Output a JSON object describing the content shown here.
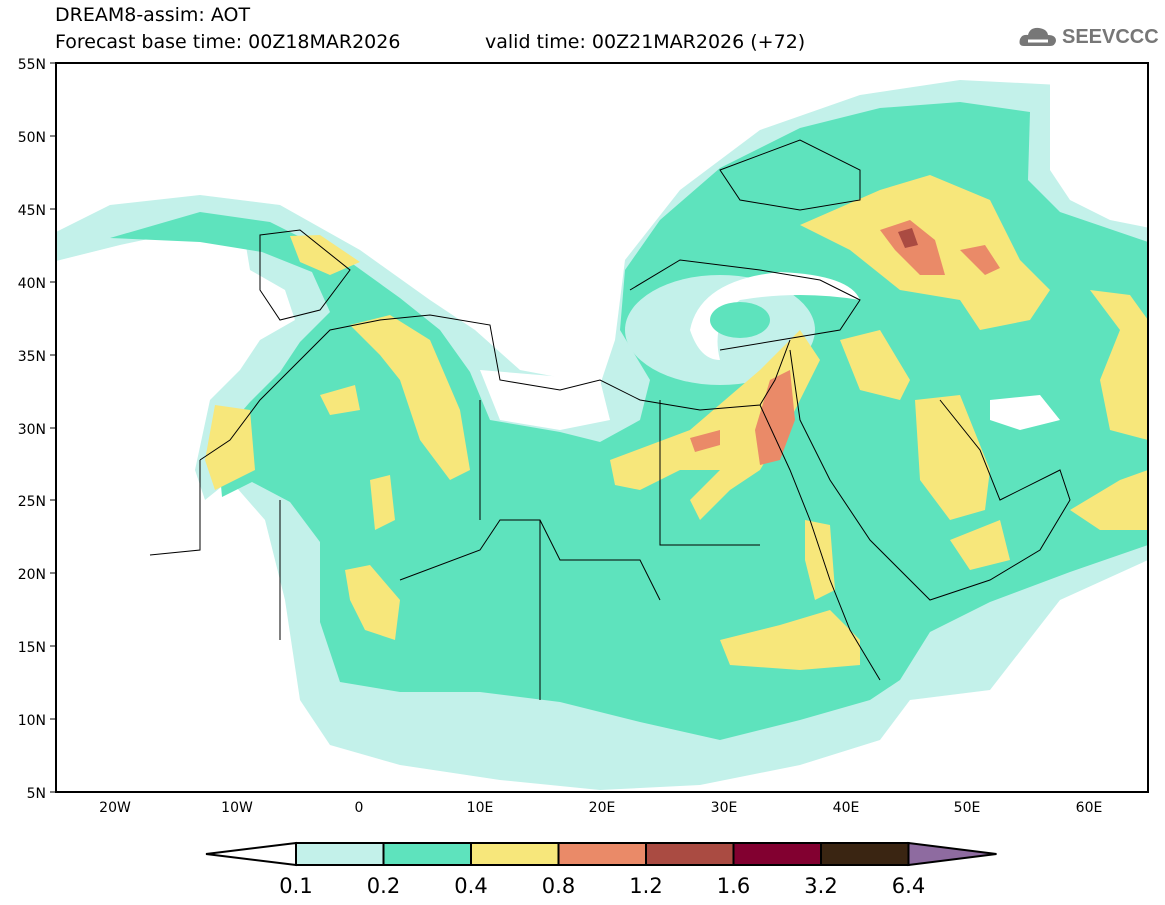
{
  "header": {
    "title": "DREAM8-assim: AOT",
    "base_time": "Forecast base time: 00Z18MAR2026",
    "valid_time": "valid time: 00Z21MAR2026 (+72)",
    "logo_text": "SEEVCCC"
  },
  "map": {
    "lat_labels": [
      "55N",
      "50N",
      "45N",
      "40N",
      "35N",
      "30N",
      "25N",
      "20N",
      "15N",
      "10N",
      "5N"
    ],
    "lon_labels": [
      "20W",
      "10W",
      "0",
      "10E",
      "20E",
      "30E",
      "40E",
      "50E",
      "60E"
    ]
  },
  "legend": {
    "levels": [
      "0.1",
      "0.2",
      "0.4",
      "0.8",
      "1.2",
      "1.6",
      "3.2",
      "6.4"
    ],
    "colors": [
      "#ffffff",
      "#c3f1ea",
      "#5ee3bd",
      "#f7e77b",
      "#ea8a68",
      "#aa4b42",
      "#820030",
      "#3a2512",
      "#8e6ba0"
    ]
  }
}
